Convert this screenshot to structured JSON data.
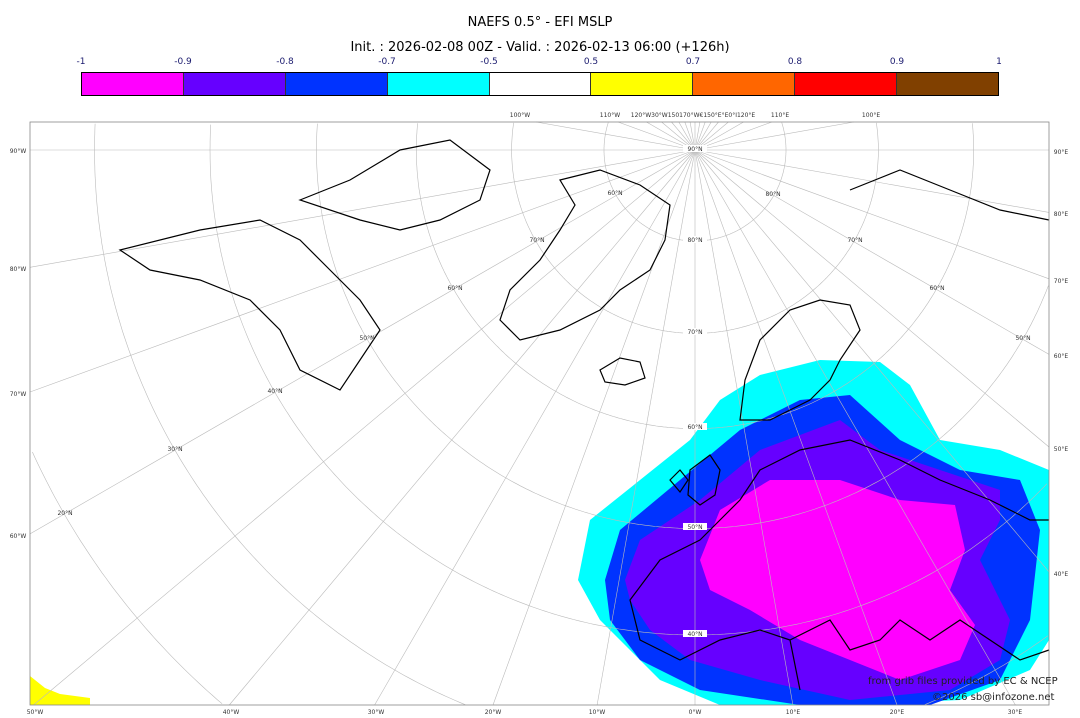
{
  "title": "NAEFS 0.5° - EFI MSLP",
  "subtitle": "Init. : 2026-02-08 00Z - Valid. : 2026-02-13 06:00 (+126h)",
  "colorbar": {
    "ticks": [
      "-1",
      "-0.9",
      "-0.8",
      "-0.7",
      "-0.5",
      "0.5",
      "0.7",
      "0.8",
      "0.9",
      "1"
    ],
    "colors": [
      "#ff00ff",
      "#6600ff",
      "#0033ff",
      "#00ffff",
      "#ffffff",
      "#ffff00",
      "#ff6600",
      "#ff0000",
      "#804000"
    ]
  },
  "map": {
    "projection": "polar stereographic",
    "lat_labels_center": [
      "90°N",
      "80°N",
      "70°N",
      "60°N",
      "50°N",
      "40°N"
    ],
    "lat_labels_west": [
      "60°N",
      "70°N",
      "60°N",
      "50°N",
      "40°N",
      "30°N",
      "20°N"
    ],
    "lat_labels_east": [
      "80°N",
      "70°N",
      "60°N",
      "50°N"
    ],
    "left_labels": [
      "90°W",
      "80°W",
      "70°W",
      "60°W"
    ],
    "right_labels": [
      "90°E",
      "80°E",
      "70°E",
      "60°E",
      "50°E",
      "40°E"
    ],
    "bottom_labels": [
      "50°W",
      "40°W",
      "30°W",
      "20°W",
      "10°W",
      "0°W",
      "10°E",
      "20°E",
      "30°E"
    ],
    "top_labels": [
      "100°W",
      "110°W",
      "120°W30°W150170°W€150°E°E0°I120°E",
      "110°E",
      "100°E"
    ]
  },
  "credits": {
    "line1": "from grib files provided by EC & NCEP",
    "line2": "©2026 sb@infozone.net"
  }
}
